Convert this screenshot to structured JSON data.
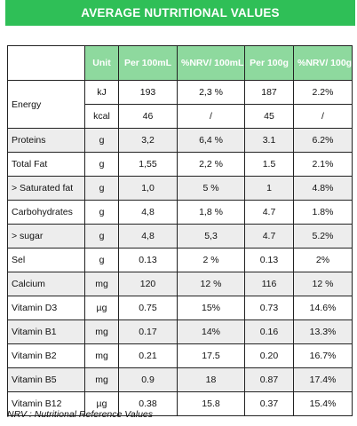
{
  "title": "AVERAGE NUTRITIONAL VALUES",
  "headers": {
    "unit": "Unit",
    "per100ml": "Per 100mL",
    "nrv100ml": "%NRV/ 100mL",
    "per100g": "Per 100g",
    "nrv100g": "%NRV/ 100g"
  },
  "energy": {
    "name": "Energy",
    "kj": {
      "unit": "kJ",
      "per100ml": "193",
      "nrv100ml": "2,3 %",
      "per100g": "187",
      "nrv100g": "2.2%"
    },
    "kcal": {
      "unit": "kcal",
      "per100ml": "46",
      "nrv100ml": "/",
      "per100g": "45",
      "nrv100g": "/"
    }
  },
  "rows": [
    {
      "name": "Proteins",
      "unit": "g",
      "per100ml": "3,2",
      "nrv100ml": "6,4 %",
      "per100g": "3.1",
      "nrv100g": "6.2%"
    },
    {
      "name": "Total Fat",
      "unit": "g",
      "per100ml": "1,55",
      "nrv100ml": "2,2 %",
      "per100g": "1.5",
      "nrv100g": "2.1%"
    },
    {
      "name": "> Saturated fat",
      "unit": "g",
      "per100ml": "1,0",
      "nrv100ml": "5 %",
      "per100g": "1",
      "nrv100g": "4.8%"
    },
    {
      "name": "Carbohydrates",
      "unit": "g",
      "per100ml": "4,8",
      "nrv100ml": "1,8 %",
      "per100g": "4.7",
      "nrv100g": "1.8%"
    },
    {
      "name": "> sugar",
      "unit": "g",
      "per100ml": "4,8",
      "nrv100ml": "5,3",
      "per100g": "4.7",
      "nrv100g": "5.2%"
    },
    {
      "name": "Sel",
      "unit": "g",
      "per100ml": "0.13",
      "nrv100ml": "2 %",
      "per100g": "0.13",
      "nrv100g": "2%"
    },
    {
      "name": "Calcium",
      "unit": "mg",
      "per100ml": "120",
      "nrv100ml": "12 %",
      "per100g": "116",
      "nrv100g": "12 %"
    },
    {
      "name": "Vitamin D3",
      "unit": "µg",
      "per100ml": "0.75",
      "nrv100ml": "15%",
      "per100g": "0.73",
      "nrv100g": "14.6%"
    },
    {
      "name": "Vitamin B1",
      "unit": "mg",
      "per100ml": "0.17",
      "nrv100ml": "14%",
      "per100g": "0.16",
      "nrv100g": "13.3%"
    },
    {
      "name": "Vitamin B2",
      "unit": "mg",
      "per100ml": "0.21",
      "nrv100ml": "17.5",
      "per100g": "0.20",
      "nrv100g": "16.7%"
    },
    {
      "name": "Vitamin B5",
      "unit": "mg",
      "per100ml": "0.9",
      "nrv100ml": "18",
      "per100g": "0.87",
      "nrv100g": "17.4%"
    },
    {
      "name": "Vitamin B12",
      "unit": "µg",
      "per100ml": "0.38",
      "nrv100ml": "15.8",
      "per100g": "0.37",
      "nrv100g": "15.4%"
    }
  ],
  "footnote": "NRV : Nutritional Reference Values",
  "colors": {
    "title_bg": "#2fbf57",
    "header_bg": "#8ed99e",
    "shade_bg": "#ededed"
  }
}
